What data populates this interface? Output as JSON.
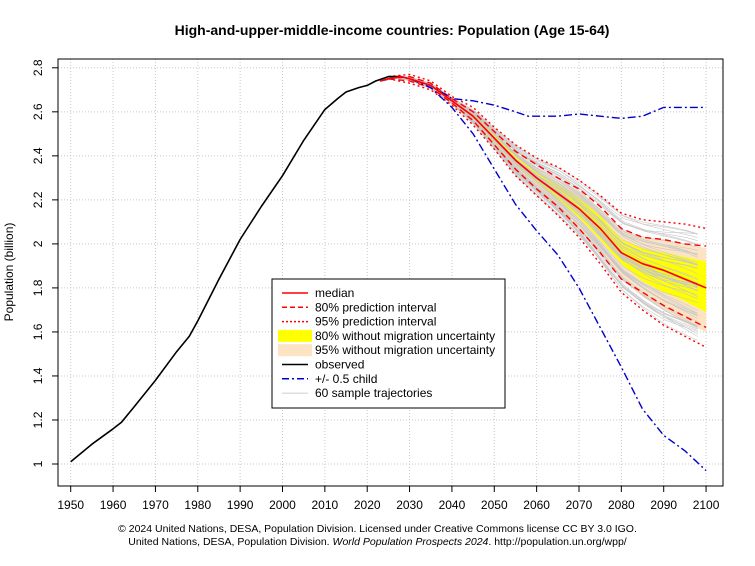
{
  "chart_data": {
    "type": "line",
    "title": "High-and-upper-middle-income countries: Population (Age 15-64)",
    "ylabel": "Population (billion)",
    "xlabel": "",
    "xlim": [
      1947,
      2104
    ],
    "ylim": [
      0.9,
      2.84
    ],
    "x_ticks": [
      1950,
      1960,
      1970,
      1980,
      1990,
      2000,
      2010,
      2020,
      2030,
      2040,
      2050,
      2060,
      2070,
      2080,
      2090,
      2100
    ],
    "y_ticks": [
      1,
      1.2,
      1.4,
      1.6,
      1.8,
      2,
      2.2,
      2.4,
      2.6,
      2.8
    ],
    "y_tick_labels": [
      "1",
      "1.2",
      "1.4",
      "1.6",
      "1.8",
      "2",
      "2.2",
      "2.4",
      "2.6",
      "2.8"
    ],
    "grid": true,
    "legend_position": "center",
    "legend": [
      {
        "label": "median",
        "color": "#ff0000",
        "style": "solid"
      },
      {
        "label": "80% prediction interval",
        "color": "#ff0000",
        "style": "dashed"
      },
      {
        "label": "95% prediction interval",
        "color": "#ff0000",
        "style": "dotted"
      },
      {
        "label": "80% without migration uncertainty",
        "color": "#ffff00",
        "style": "band"
      },
      {
        "label": "95% without migration uncertainty",
        "color": "#fbe3c4",
        "style": "band"
      },
      {
        "label": "observed",
        "color": "#000000",
        "style": "solid"
      },
      {
        "label": "+/- 0.5 child",
        "color": "#0000cd",
        "style": "dashdot"
      },
      {
        "label": "60 sample trajectories",
        "color": "#bfbfbf",
        "style": "thin"
      }
    ],
    "observed": {
      "x": [
        1950,
        1955,
        1960,
        1962,
        1965,
        1970,
        1975,
        1978,
        1980,
        1985,
        1990,
        1995,
        2000,
        2005,
        2010,
        2013,
        2015,
        2018,
        2020,
        2022,
        2025,
        2027,
        2028
      ],
      "y": [
        1.01,
        1.09,
        1.16,
        1.19,
        1.26,
        1.38,
        1.51,
        1.58,
        1.65,
        1.84,
        2.02,
        2.17,
        2.31,
        2.47,
        2.61,
        2.66,
        2.69,
        2.71,
        2.72,
        2.74,
        2.76,
        2.76,
        2.76
      ]
    },
    "series": [
      {
        "name": "median",
        "x": [
          2023,
          2025,
          2028,
          2030,
          2035,
          2040,
          2045,
          2050,
          2055,
          2060,
          2065,
          2070,
          2075,
          2080,
          2085,
          2090,
          2095,
          2100
        ],
        "y": [
          2.74,
          2.75,
          2.76,
          2.75,
          2.72,
          2.65,
          2.58,
          2.48,
          2.38,
          2.3,
          2.23,
          2.16,
          2.07,
          1.96,
          1.91,
          1.88,
          1.84,
          1.8
        ]
      },
      {
        "name": "80% prediction interval upper",
        "x": [
          2025,
          2030,
          2035,
          2040,
          2045,
          2050,
          2055,
          2060,
          2065,
          2070,
          2075,
          2080,
          2085,
          2090,
          2095,
          2100
        ],
        "y": [
          2.75,
          2.76,
          2.73,
          2.66,
          2.6,
          2.51,
          2.42,
          2.36,
          2.3,
          2.25,
          2.17,
          2.07,
          2.03,
          2.02,
          2.0,
          1.99
        ]
      },
      {
        "name": "80% prediction interval lower",
        "x": [
          2025,
          2030,
          2035,
          2040,
          2045,
          2050,
          2055,
          2060,
          2065,
          2070,
          2075,
          2080,
          2085,
          2090,
          2095,
          2100
        ],
        "y": [
          2.75,
          2.74,
          2.71,
          2.64,
          2.56,
          2.45,
          2.34,
          2.25,
          2.17,
          2.07,
          1.96,
          1.84,
          1.78,
          1.72,
          1.67,
          1.62
        ]
      },
      {
        "name": "95% prediction interval upper",
        "x": [
          2025,
          2030,
          2035,
          2040,
          2045,
          2050,
          2055,
          2060,
          2065,
          2070,
          2075,
          2080,
          2085,
          2090,
          2095,
          2100
        ],
        "y": [
          2.76,
          2.77,
          2.74,
          2.67,
          2.62,
          2.53,
          2.45,
          2.39,
          2.35,
          2.29,
          2.22,
          2.14,
          2.11,
          2.1,
          2.09,
          2.07
        ]
      },
      {
        "name": "95% prediction interval lower",
        "x": [
          2025,
          2030,
          2035,
          2040,
          2045,
          2050,
          2055,
          2060,
          2065,
          2070,
          2075,
          2080,
          2085,
          2090,
          2095,
          2100
        ],
        "y": [
          2.75,
          2.73,
          2.7,
          2.63,
          2.54,
          2.43,
          2.31,
          2.22,
          2.13,
          2.03,
          1.91,
          1.78,
          1.7,
          1.63,
          1.58,
          1.53
        ]
      },
      {
        "name": "80% without migration uncertainty upper",
        "x": [
          2040,
          2045,
          2050,
          2055,
          2060,
          2065,
          2070,
          2075,
          2080,
          2085,
          2090,
          2095,
          2100
        ],
        "y": [
          2.66,
          2.59,
          2.5,
          2.4,
          2.33,
          2.27,
          2.21,
          2.13,
          2.02,
          1.98,
          1.96,
          1.94,
          1.92
        ]
      },
      {
        "name": "80% without migration uncertainty lower",
        "x": [
          2040,
          2045,
          2050,
          2055,
          2060,
          2065,
          2070,
          2075,
          2080,
          2085,
          2090,
          2095,
          2100
        ],
        "y": [
          2.64,
          2.57,
          2.46,
          2.36,
          2.28,
          2.2,
          2.12,
          2.02,
          1.91,
          1.83,
          1.78,
          1.74,
          1.69
        ]
      },
      {
        "name": "95% without migration uncertainty upper",
        "x": [
          2040,
          2045,
          2050,
          2055,
          2060,
          2065,
          2070,
          2075,
          2080,
          2085,
          2090,
          2095,
          2100
        ],
        "y": [
          2.67,
          2.6,
          2.52,
          2.42,
          2.35,
          2.29,
          2.24,
          2.16,
          2.06,
          2.03,
          2.02,
          2.0,
          1.98
        ]
      },
      {
        "name": "95% without migration uncertainty lower",
        "x": [
          2040,
          2045,
          2050,
          2055,
          2060,
          2065,
          2070,
          2075,
          2080,
          2085,
          2090,
          2095,
          2100
        ],
        "y": [
          2.63,
          2.55,
          2.44,
          2.33,
          2.24,
          2.15,
          2.06,
          1.96,
          1.84,
          1.76,
          1.7,
          1.64,
          1.6
        ]
      },
      {
        "name": "+/- 0.5 child upper",
        "x": [
          2023,
          2028,
          2030,
          2035,
          2040,
          2045,
          2050,
          2055,
          2058,
          2060,
          2065,
          2070,
          2075,
          2080,
          2085,
          2090,
          2095,
          2100
        ],
        "y": [
          2.74,
          2.76,
          2.75,
          2.72,
          2.66,
          2.65,
          2.63,
          2.6,
          2.58,
          2.58,
          2.58,
          2.59,
          2.58,
          2.57,
          2.58,
          2.62,
          2.62,
          2.62
        ]
      },
      {
        "name": "+/- 0.5 child lower",
        "x": [
          2023,
          2028,
          2030,
          2035,
          2040,
          2045,
          2050,
          2055,
          2060,
          2065,
          2070,
          2075,
          2080,
          2085,
          2090,
          2095,
          2100
        ],
        "y": [
          2.74,
          2.76,
          2.75,
          2.71,
          2.62,
          2.5,
          2.34,
          2.18,
          2.06,
          1.95,
          1.8,
          1.62,
          1.44,
          1.25,
          1.13,
          1.06,
          0.97
        ]
      }
    ],
    "trajectories": {
      "count": 60,
      "x_start": 2023,
      "x_end": 2100,
      "y_spread_2100": [
        1.46,
        2.16
      ]
    }
  },
  "footer": {
    "line1": "© 2024 United Nations, DESA, Population Division. Licensed under Creative Commons license CC BY 3.0 IGO.",
    "line2_prefix": "United Nations, DESA, Population Division. ",
    "line2_italic": "World Population Prospects 2024",
    "line2_suffix": ". http://population.un.org/wpp/"
  },
  "colors": {
    "median": "#ff0000",
    "pi": "#ff0000",
    "band80": "#ffff00",
    "band95": "#fbe3c4",
    "observed": "#000000",
    "half_child": "#0000cd",
    "trajectory": "#c8c8c8",
    "grid": "#c8c8c8"
  }
}
